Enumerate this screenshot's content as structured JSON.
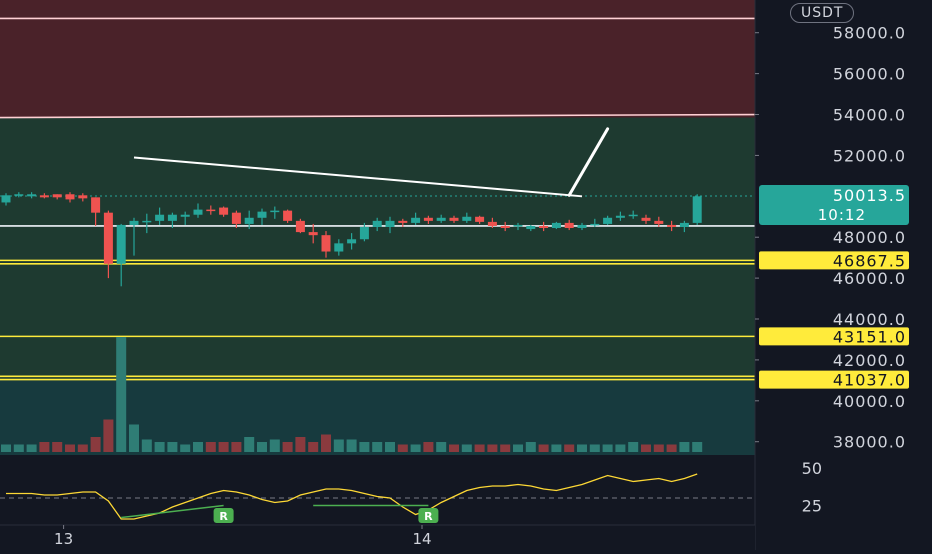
{
  "currency_badge": "USDT",
  "chart_data": {
    "type": "candlestick",
    "price_axis": {
      "ticks": [
        "58000.0",
        "56000.0",
        "54000.0",
        "52000.0",
        "48000.0",
        "46000.0",
        "44000.0",
        "42000.0",
        "40000.0",
        "38000.0"
      ],
      "tick_values": [
        58000,
        56000,
        54000,
        52000,
        48000,
        46000,
        44000,
        42000,
        40000,
        38000
      ],
      "range": [
        37350,
        59600
      ]
    },
    "time_axis": {
      "labels": [
        "13",
        "14"
      ],
      "label_index": [
        4.5,
        32.5
      ]
    },
    "current_price": {
      "price": "50013.5",
      "countdown": "10:12",
      "value": 50013.5,
      "color": "#26a69a"
    },
    "level_labels": [
      {
        "text": "46867.5",
        "value": 46867.5
      },
      {
        "text": "43151.0",
        "value": 43151
      },
      {
        "text": "41037.0",
        "value": 41037
      }
    ],
    "horizontal_lines": [
      {
        "value": 58700,
        "color": "#ffd0d4"
      },
      {
        "value": 53850,
        "color": "#ffd0d4",
        "end_value": 54000
      },
      {
        "value": 48550,
        "color": "#f0f3fa"
      },
      {
        "value": 46867.5,
        "color": "#ffeb3b"
      },
      {
        "value": 46700,
        "color": "#ffeb3b"
      },
      {
        "value": 43151,
        "color": "#ffeb3b"
      },
      {
        "value": 41200,
        "color": "#ffeb3b"
      },
      {
        "value": 41037,
        "color": "#ffeb3b"
      }
    ],
    "zones": [
      {
        "name": "resistance",
        "from": 53850,
        "to": 59600,
        "color": "#4a2229"
      },
      {
        "name": "range",
        "from": 41037,
        "to": 53850,
        "color": "#1e3a30"
      },
      {
        "name": "support",
        "from": 37350,
        "to": 41037,
        "color": "#173a3e"
      }
    ],
    "trendline": {
      "from": [
        10,
        51900
      ],
      "to": [
        45,
        50000
      ],
      "color": "#ffffff"
    },
    "projection_arrow": {
      "from": [
        44,
        50050
      ],
      "to": [
        47,
        53300
      ],
      "color": "#ffffff"
    },
    "candles": [
      [
        49700,
        50150,
        49550,
        50050
      ],
      [
        50050,
        50200,
        49950,
        50100
      ],
      [
        50000,
        50200,
        49900,
        50100
      ],
      [
        50050,
        50150,
        49900,
        49950
      ],
      [
        50100,
        50100,
        49850,
        49950
      ],
      [
        50100,
        50200,
        49700,
        49850
      ],
      [
        50050,
        50150,
        49750,
        49900
      ],
      [
        49950,
        49950,
        48550,
        49200
      ],
      [
        49200,
        49300,
        46000,
        46700
      ],
      [
        46700,
        48650,
        45600,
        48600
      ],
      [
        48600,
        48950,
        47100,
        48800
      ],
      [
        48800,
        49150,
        48200,
        48800
      ],
      [
        48800,
        49450,
        48600,
        49100
      ],
      [
        48800,
        49200,
        48450,
        49100
      ],
      [
        49000,
        49250,
        48600,
        49100
      ],
      [
        49100,
        49650,
        48950,
        49350
      ],
      [
        49350,
        49550,
        49100,
        49300
      ],
      [
        49450,
        49500,
        49000,
        49100
      ],
      [
        49200,
        49300,
        48450,
        48650
      ],
      [
        48650,
        49300,
        48400,
        48950
      ],
      [
        48950,
        49400,
        48600,
        49250
      ],
      [
        49250,
        49500,
        48900,
        49300
      ],
      [
        49300,
        49350,
        48700,
        48800
      ],
      [
        48800,
        48900,
        48200,
        48250
      ],
      [
        48250,
        48650,
        47700,
        48100
      ],
      [
        48100,
        48300,
        47000,
        47300
      ],
      [
        47300,
        47900,
        47100,
        47700
      ],
      [
        47700,
        48200,
        47400,
        47900
      ],
      [
        47900,
        48700,
        47800,
        48500
      ],
      [
        48500,
        48950,
        48300,
        48800
      ],
      [
        48500,
        49000,
        48200,
        48800
      ],
      [
        48800,
        48900,
        48500,
        48700
      ],
      [
        48700,
        49200,
        48600,
        48950
      ],
      [
        48950,
        49050,
        48650,
        48800
      ],
      [
        48800,
        49100,
        48700,
        48950
      ],
      [
        48950,
        49050,
        48700,
        48800
      ],
      [
        48800,
        49200,
        48700,
        49000
      ],
      [
        49000,
        49050,
        48650,
        48750
      ],
      [
        48750,
        48950,
        48450,
        48550
      ],
      [
        48550,
        48750,
        48300,
        48450
      ],
      [
        48550,
        48700,
        48350,
        48600
      ],
      [
        48400,
        48600,
        48300,
        48550
      ],
      [
        48550,
        48750,
        48300,
        48450
      ],
      [
        48450,
        48750,
        48400,
        48700
      ],
      [
        48700,
        48850,
        48350,
        48450
      ],
      [
        48450,
        48700,
        48350,
        48600
      ],
      [
        48600,
        48900,
        48500,
        48650
      ],
      [
        48650,
        49050,
        48600,
        48950
      ],
      [
        48950,
        49250,
        48800,
        49050
      ],
      [
        49050,
        49300,
        48900,
        49100
      ],
      [
        48950,
        49100,
        48650,
        48800
      ],
      [
        48800,
        49000,
        48500,
        48650
      ],
      [
        48600,
        48800,
        48300,
        48500
      ],
      [
        48500,
        48800,
        48250,
        48700
      ],
      [
        48700,
        50100,
        48600,
        50000
      ]
    ],
    "volumes": [
      3,
      3,
      3,
      4,
      4,
      3,
      3,
      6,
      13,
      46,
      11,
      5,
      4,
      4,
      3,
      4,
      4,
      4,
      4,
      6,
      4,
      5,
      4,
      6,
      4,
      7,
      5,
      5,
      4,
      4,
      4,
      3,
      3,
      4,
      4,
      3,
      3,
      3,
      3,
      3,
      3,
      4,
      3,
      3,
      3,
      3,
      3,
      3,
      3,
      4,
      3,
      3,
      3,
      4,
      4
    ],
    "indicator": {
      "axis_ticks": [
        "50",
        "25"
      ],
      "tick_values": [
        50,
        25
      ],
      "dashed_level": 30,
      "range": [
        12,
        58
      ],
      "line_color": "#fdd835",
      "values": [
        33,
        33,
        33,
        32,
        32,
        33,
        34,
        34,
        28,
        16,
        16,
        18,
        20,
        24,
        27,
        30,
        33,
        35,
        34,
        32,
        29,
        27,
        28,
        32,
        34,
        36,
        36,
        35,
        33,
        31,
        30,
        24,
        19,
        22,
        27,
        31,
        35,
        37,
        38,
        38,
        39,
        38,
        36,
        35,
        37,
        39,
        42,
        45,
        43,
        41,
        42,
        43,
        41,
        43,
        46
      ],
      "divergence_line": {
        "from": [
          9,
          17
        ],
        "to": [
          17,
          25
        ],
        "color": "#4caf50"
      },
      "divergence_line_2": {
        "from": [
          24,
          25
        ],
        "to": [
          33,
          25
        ],
        "color": "#4caf50"
      },
      "labels": [
        {
          "text": "R",
          "index": 17,
          "value": 18
        },
        {
          "text": "R",
          "index": 33,
          "value": 18
        }
      ]
    },
    "colors": {
      "up": "#26a69a",
      "down": "#ef5350",
      "volume_up": "#2f7d75",
      "volume_down": "#8a3a3e"
    }
  }
}
